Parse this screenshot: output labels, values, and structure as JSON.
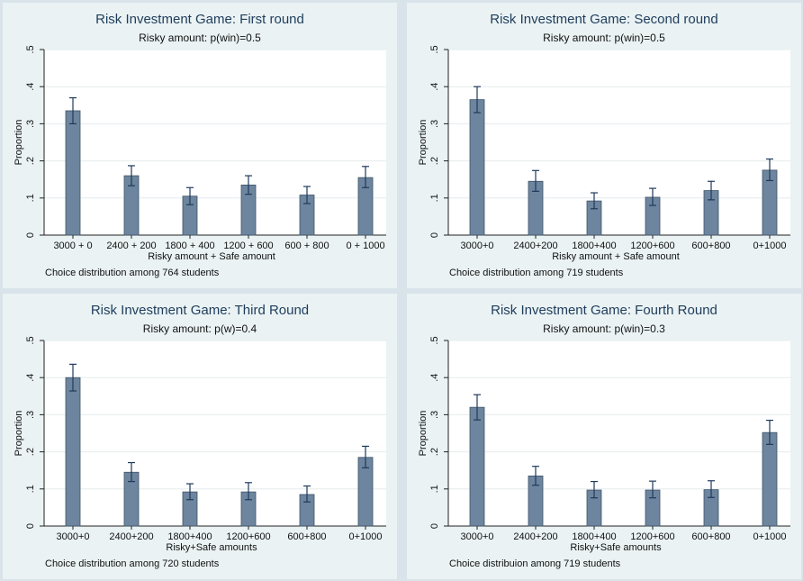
{
  "colors": {
    "bar_fill": "#6d859e",
    "bar_stroke": "#3f5468",
    "error_bar": "#1f3a5c",
    "plot_bg": "#ffffff",
    "panel_bg": "#eaf2f3",
    "title": "#1e3d5c"
  },
  "chart_data": [
    {
      "type": "bar",
      "title": "Risk Investment Game: First round",
      "subtitle": "Risky amount: p(win)=0.5",
      "xlabel": "Risky amount + Safe amount",
      "ylabel": "Proportion",
      "note": "Choice distribution among 764 students",
      "ylim": [
        0,
        0.5
      ],
      "yticks": [
        0,
        0.1,
        0.2,
        0.3,
        0.4,
        0.5
      ],
      "ytick_labels": [
        "0",
        ".1",
        ".2",
        ".3",
        ".4",
        ".5"
      ],
      "grid": true,
      "categories": [
        "3000 + 0",
        "2400 + 200",
        "1800 + 400",
        "1200 + 600",
        "600 + 800",
        "0 + 1000"
      ],
      "values": [
        0.335,
        0.16,
        0.105,
        0.135,
        0.108,
        0.155
      ],
      "error_low": [
        0.3,
        0.133,
        0.082,
        0.11,
        0.085,
        0.128
      ],
      "error_high": [
        0.37,
        0.187,
        0.128,
        0.16,
        0.131,
        0.185
      ]
    },
    {
      "type": "bar",
      "title": "Risk Investment Game: Second round",
      "subtitle": "Risky amount: p(win)=0.5",
      "xlabel": "Risky amount + Safe amount",
      "ylabel": "Proportion",
      "note": "Choice distribution among 719 students",
      "ylim": [
        0,
        0.5
      ],
      "yticks": [
        0,
        0.1,
        0.2,
        0.3,
        0.4,
        0.5
      ],
      "ytick_labels": [
        "0",
        ".1",
        ".2",
        ".3",
        ".4",
        ".5"
      ],
      "grid": true,
      "categories": [
        "3000+0",
        "2400+200",
        "1800+400",
        "1200+600",
        "600+800",
        "0+1000"
      ],
      "values": [
        0.365,
        0.145,
        0.092,
        0.102,
        0.12,
        0.175
      ],
      "error_low": [
        0.33,
        0.118,
        0.071,
        0.08,
        0.095,
        0.147
      ],
      "error_high": [
        0.4,
        0.174,
        0.114,
        0.126,
        0.145,
        0.205
      ]
    },
    {
      "type": "bar",
      "title": "Risk Investment Game: Third Round",
      "subtitle": "Risky amount: p(w)=0.4",
      "xlabel": "Risky+Safe amounts",
      "ylabel": "Proportion",
      "note": "Choice distribution among 720 students",
      "ylim": [
        0,
        0.5
      ],
      "yticks": [
        0,
        0.1,
        0.2,
        0.3,
        0.4,
        0.5
      ],
      "ytick_labels": [
        "0",
        ".1",
        ".2",
        ".3",
        ".4",
        ".5"
      ],
      "grid": true,
      "categories": [
        "3000+0",
        "2400+200",
        "1800+400",
        "1200+600",
        "600+800",
        "0+1000"
      ],
      "values": [
        0.4,
        0.145,
        0.092,
        0.092,
        0.085,
        0.185
      ],
      "error_low": [
        0.364,
        0.12,
        0.071,
        0.071,
        0.065,
        0.157
      ],
      "error_high": [
        0.436,
        0.171,
        0.114,
        0.117,
        0.108,
        0.215
      ]
    },
    {
      "type": "bar",
      "title": "Risk Investment Game: Fourth Round",
      "subtitle": "Risky amount: p(win)=0.3",
      "xlabel": "Risky+Safe amounts",
      "ylabel": "Proportion",
      "note": "Choice distribuion among 719 students",
      "ylim": [
        0,
        0.5
      ],
      "yticks": [
        0,
        0.1,
        0.2,
        0.3,
        0.4,
        0.5
      ],
      "ytick_labels": [
        "0",
        ".1",
        ".2",
        ".3",
        ".4",
        ".5"
      ],
      "grid": true,
      "categories": [
        "3000+0",
        "2400+200",
        "1800+400",
        "1200+600",
        "600+800",
        "0+1000"
      ],
      "values": [
        0.32,
        0.135,
        0.097,
        0.097,
        0.098,
        0.252
      ],
      "error_low": [
        0.286,
        0.11,
        0.076,
        0.076,
        0.077,
        0.22
      ],
      "error_high": [
        0.354,
        0.161,
        0.12,
        0.121,
        0.122,
        0.285
      ]
    }
  ]
}
